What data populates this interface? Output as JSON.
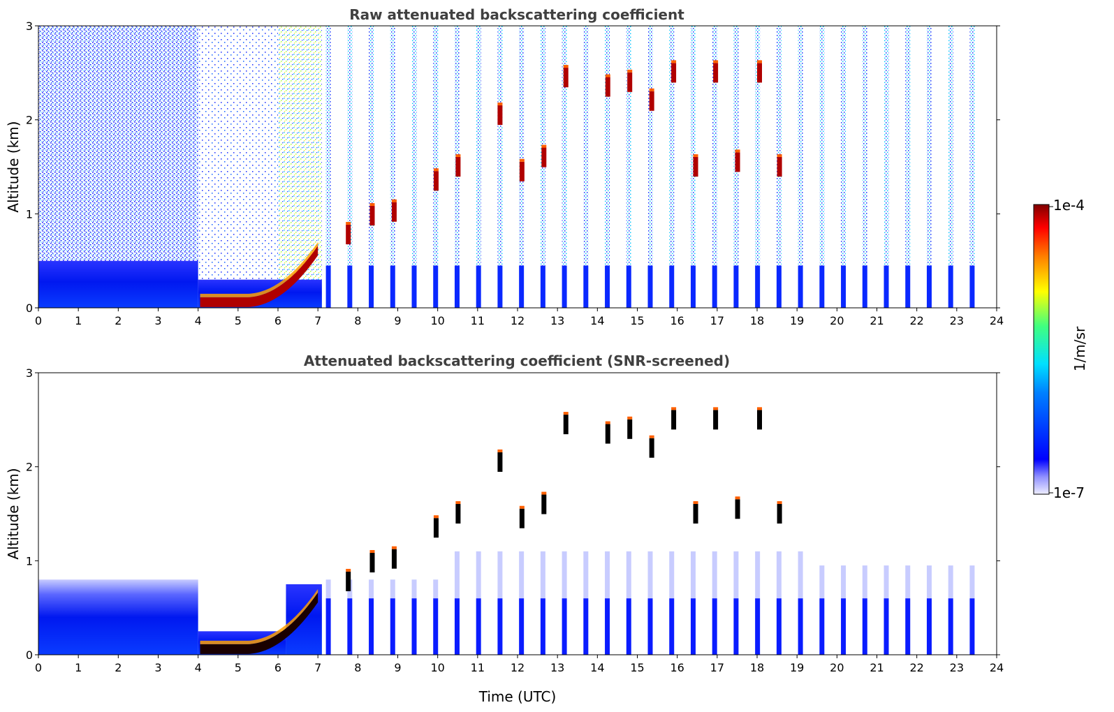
{
  "colorbar": {
    "max_label": "1e-4",
    "min_label": "1e-7",
    "unit_label": "1/m/sr",
    "colormap": "jet",
    "scale": "log"
  },
  "chart_data": [
    {
      "type": "heatmap",
      "title": "Raw attenuated backscattering coefficient",
      "xlabel": "",
      "ylabel": "Altitude (km)",
      "xlim": [
        0,
        24
      ],
      "ylim": [
        0,
        3
      ],
      "xticks": [
        "0",
        "1",
        "2",
        "3",
        "4",
        "5",
        "6",
        "7",
        "8",
        "9",
        "10",
        "11",
        "12",
        "13",
        "14",
        "15",
        "16",
        "17",
        "18",
        "19",
        "20",
        "21",
        "22",
        "23",
        "24"
      ],
      "yticks": [
        "0",
        "1",
        "2",
        "3"
      ],
      "layers": [
        {
          "x0": 0,
          "x1": 4.0,
          "y0": 0,
          "y1": 0.5,
          "value": "1e-6"
        },
        {
          "x0": 4.05,
          "x1": 6.6,
          "y0": 0.0,
          "y1": 0.15,
          "value": "1e-4"
        },
        {
          "x0": 0,
          "x1": 7.1,
          "y0": 0.5,
          "y1": 3.0,
          "value": "noise"
        }
      ],
      "cloud_features": [
        {
          "x": 7.7,
          "y": 0.78,
          "value": "1e-4"
        },
        {
          "x": 8.3,
          "y": 0.98,
          "value": "1e-4"
        },
        {
          "x": 8.85,
          "y": 1.02,
          "value": "1e-4"
        },
        {
          "x": 9.9,
          "y": 1.35,
          "value": "1e-4"
        },
        {
          "x": 10.45,
          "y": 1.5,
          "value": "1e-4"
        },
        {
          "x": 11.5,
          "y": 2.05,
          "value": "1e-4"
        },
        {
          "x": 12.05,
          "y": 1.45,
          "value": "1e-4"
        },
        {
          "x": 12.6,
          "y": 1.6,
          "value": "1e-4"
        },
        {
          "x": 13.15,
          "y": 2.45,
          "value": "1e-4"
        },
        {
          "x": 14.2,
          "y": 2.35,
          "value": "1e-4"
        },
        {
          "x": 14.75,
          "y": 2.4,
          "value": "1e-4"
        },
        {
          "x": 15.3,
          "y": 2.2,
          "value": "1e-4"
        },
        {
          "x": 15.85,
          "y": 2.5,
          "value": "1e-4"
        },
        {
          "x": 16.4,
          "y": 1.5,
          "value": "1e-4"
        },
        {
          "x": 16.9,
          "y": 2.5,
          "value": "1e-4"
        },
        {
          "x": 17.45,
          "y": 1.55,
          "value": "1e-4"
        },
        {
          "x": 18.0,
          "y": 2.5,
          "value": "1e-4"
        },
        {
          "x": 18.5,
          "y": 1.5,
          "value": "1e-4"
        }
      ]
    },
    {
      "type": "heatmap",
      "title": "Attenuated backscattering coefficient (SNR-screened)",
      "xlabel": "Time (UTC)",
      "ylabel": "Altitude (km)",
      "xlim": [
        0,
        24
      ],
      "ylim": [
        0,
        3
      ],
      "xticks": [
        "0",
        "1",
        "2",
        "3",
        "4",
        "5",
        "6",
        "7",
        "8",
        "9",
        "10",
        "11",
        "12",
        "13",
        "14",
        "15",
        "16",
        "17",
        "18",
        "19",
        "20",
        "21",
        "22",
        "23",
        "24"
      ],
      "yticks": [
        "0",
        "1",
        "2",
        "3"
      ],
      "layers": [
        {
          "x0": 0,
          "x1": 4.0,
          "y0": 0,
          "y1": 0.8,
          "value": "1e-6"
        },
        {
          "x0": 4.05,
          "x1": 6.6,
          "y0": 0.0,
          "y1": 0.2,
          "value": "1e-4"
        }
      ],
      "cloud_features": [
        {
          "x": 7.7,
          "y": 0.78,
          "value": "1e-4"
        },
        {
          "x": 8.3,
          "y": 0.98,
          "value": "1e-4"
        },
        {
          "x": 8.85,
          "y": 1.02,
          "value": "1e-4"
        },
        {
          "x": 9.9,
          "y": 1.35,
          "value": "1e-4"
        },
        {
          "x": 10.45,
          "y": 1.5,
          "value": "1e-4"
        },
        {
          "x": 11.5,
          "y": 2.05,
          "value": "1e-4"
        },
        {
          "x": 12.05,
          "y": 1.45,
          "value": "1e-4"
        },
        {
          "x": 12.6,
          "y": 1.6,
          "value": "1e-4"
        },
        {
          "x": 13.15,
          "y": 2.45,
          "value": "1e-4"
        },
        {
          "x": 14.2,
          "y": 2.35,
          "value": "1e-4"
        },
        {
          "x": 14.75,
          "y": 2.4,
          "value": "1e-4"
        },
        {
          "x": 15.3,
          "y": 2.2,
          "value": "1e-4"
        },
        {
          "x": 15.85,
          "y": 2.5,
          "value": "1e-4"
        },
        {
          "x": 16.4,
          "y": 1.5,
          "value": "1e-4"
        },
        {
          "x": 16.9,
          "y": 2.5,
          "value": "1e-4"
        },
        {
          "x": 17.45,
          "y": 1.55,
          "value": "1e-4"
        },
        {
          "x": 18.0,
          "y": 2.5,
          "value": "1e-4"
        },
        {
          "x": 18.5,
          "y": 1.5,
          "value": "1e-4"
        }
      ]
    }
  ]
}
